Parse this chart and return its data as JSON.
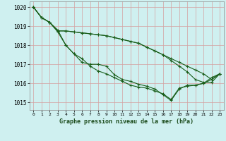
{
  "title": "Graphe pression niveau de la mer (hPa)",
  "bg_color": "#cff0f0",
  "grid_color": "#d4a0a0",
  "line_color": "#1a5e1a",
  "xlim": [
    -0.5,
    23.5
  ],
  "ylim": [
    1014.6,
    1020.3
  ],
  "yticks": [
    1015,
    1016,
    1017,
    1018,
    1019,
    1020
  ],
  "xticks": [
    0,
    1,
    2,
    3,
    4,
    5,
    6,
    7,
    8,
    9,
    10,
    11,
    12,
    13,
    14,
    15,
    16,
    17,
    18,
    19,
    20,
    21,
    22,
    23
  ],
  "series": [
    [
      1020.0,
      1019.45,
      1019.2,
      1018.8,
      1018.0,
      1017.55,
      1017.1,
      1017.0,
      1017.0,
      1016.9,
      1016.45,
      1016.2,
      1016.1,
      1015.95,
      1015.85,
      1015.7,
      1015.4,
      1015.1,
      1015.7,
      1015.9,
      1015.9,
      1016.0,
      1016.3,
      1016.5
    ],
    [
      1020.0,
      1019.45,
      1019.2,
      1018.75,
      1018.75,
      1018.7,
      1018.65,
      1018.6,
      1018.55,
      1018.5,
      1018.4,
      1018.3,
      1018.2,
      1018.1,
      1017.9,
      1017.7,
      1017.5,
      1017.2,
      1016.9,
      1016.6,
      1016.2,
      1016.05,
      1016.05,
      1016.5
    ],
    [
      1020.0,
      1019.45,
      1019.2,
      1018.75,
      1018.75,
      1018.7,
      1018.65,
      1018.6,
      1018.55,
      1018.5,
      1018.4,
      1018.3,
      1018.2,
      1018.1,
      1017.9,
      1017.7,
      1017.5,
      1017.3,
      1017.1,
      1016.9,
      1016.7,
      1016.5,
      1016.2,
      1016.5
    ],
    [
      1020.0,
      1019.45,
      1019.2,
      1018.7,
      1018.0,
      1017.55,
      1017.3,
      1016.9,
      1016.65,
      1016.5,
      1016.3,
      1016.1,
      1015.9,
      1015.8,
      1015.75,
      1015.6,
      1015.45,
      1015.15,
      1015.75,
      1015.85,
      1015.9,
      1016.0,
      1016.2,
      1016.5
    ]
  ]
}
